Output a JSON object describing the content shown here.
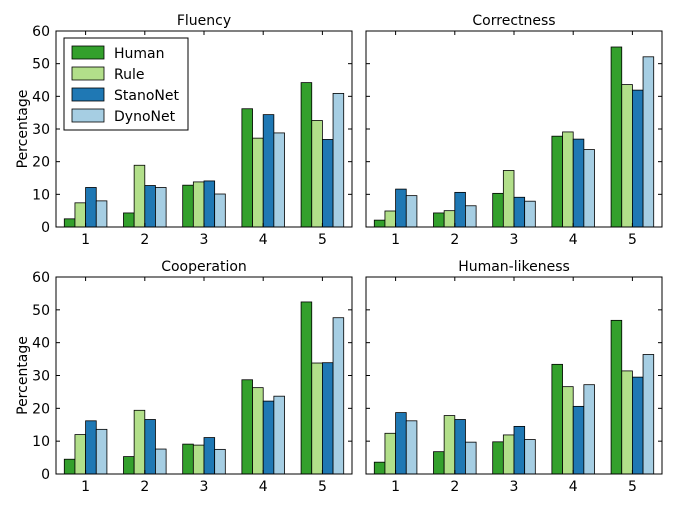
{
  "chart_data": {
    "type": "bar",
    "ylabel": "Percentage",
    "categories": [
      "1",
      "2",
      "3",
      "4",
      "5"
    ],
    "ylim": [
      0,
      60
    ],
    "yticks": [
      0,
      10,
      20,
      30,
      40,
      50,
      60
    ],
    "legend": {
      "placement": "top-left",
      "panel": 0
    },
    "series": [
      {
        "name": "Human",
        "color": "#33a02c"
      },
      {
        "name": "Rule",
        "color": "#b2df8a"
      },
      {
        "name": "StanoNet",
        "color": "#1f78b4"
      },
      {
        "name": "DynoNet",
        "color": "#a6cee3"
      }
    ],
    "panels": [
      {
        "title": "Fluency",
        "values": [
          [
            2.5,
            4.3,
            12.8,
            36.2,
            44.2
          ],
          [
            7.4,
            18.9,
            13.8,
            27.2,
            32.6
          ],
          [
            12.1,
            12.7,
            14.1,
            34.4,
            26.8
          ],
          [
            8.0,
            12.1,
            10.1,
            28.8,
            40.9
          ]
        ]
      },
      {
        "title": "Correctness",
        "values": [
          [
            2.1,
            4.3,
            10.3,
            27.8,
            55.1
          ],
          [
            4.9,
            5.0,
            17.3,
            29.1,
            43.6
          ],
          [
            11.6,
            10.6,
            9.1,
            26.9,
            41.9
          ],
          [
            9.6,
            6.5,
            7.9,
            23.7,
            52.1
          ]
        ]
      },
      {
        "title": "Cooperation",
        "values": [
          [
            4.5,
            5.3,
            9.1,
            28.7,
            52.4
          ],
          [
            12.0,
            19.4,
            8.8,
            26.3,
            33.8
          ],
          [
            16.2,
            16.6,
            11.1,
            22.2,
            33.9
          ],
          [
            13.6,
            7.6,
            7.5,
            23.7,
            47.6
          ]
        ]
      },
      {
        "title": "Human-likeness",
        "values": [
          [
            3.6,
            6.8,
            9.8,
            33.4,
            46.8
          ],
          [
            12.4,
            17.8,
            11.9,
            26.6,
            31.4
          ],
          [
            18.7,
            16.6,
            14.5,
            20.6,
            29.5
          ],
          [
            16.2,
            9.7,
            10.5,
            27.2,
            36.4
          ]
        ]
      }
    ]
  }
}
